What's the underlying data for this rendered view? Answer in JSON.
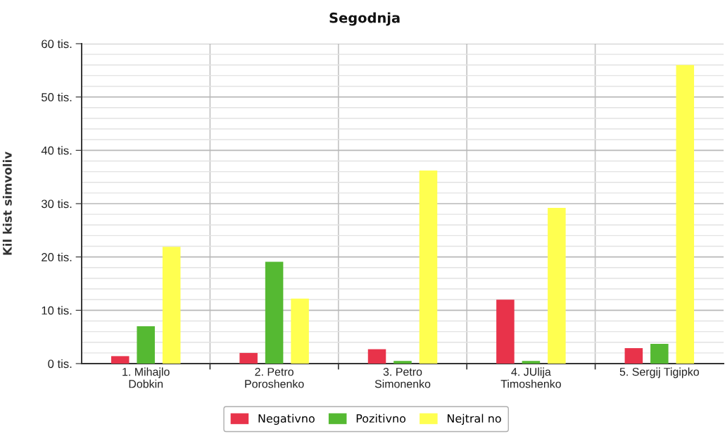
{
  "chart_data": {
    "type": "bar",
    "title": "Segodnja",
    "ylabel": "Kil kist simvoliv",
    "categories": [
      "1. Mihajlo\nDobkin",
      "2. Petro\nPoroshenko",
      "3. Petro\nSimonenko",
      "4. JUlija\nTimoshenko",
      "5. Sergij Tigipko"
    ],
    "series": [
      {
        "name": "Negativno",
        "color": "#e8334a",
        "values": [
          1.4,
          2.0,
          2.7,
          12.0,
          2.9
        ]
      },
      {
        "name": "Pozitivno",
        "color": "#55b932",
        "values": [
          7.0,
          19.1,
          0.5,
          0.5,
          3.7
        ]
      },
      {
        "name": "Nejtral no",
        "color": "#ffff50",
        "values": [
          21.9,
          12.2,
          36.2,
          29.2,
          56.0
        ]
      }
    ],
    "ylim": [
      0,
      60
    ],
    "yticks": [
      {
        "value": 0,
        "label": "0 tis."
      },
      {
        "value": 2,
        "label": null
      },
      {
        "value": 4,
        "label": null
      },
      {
        "value": 6,
        "label": null
      },
      {
        "value": 8,
        "label": null
      },
      {
        "value": 10,
        "label": "10 tis."
      },
      {
        "value": 12,
        "label": null
      },
      {
        "value": 14,
        "label": null
      },
      {
        "value": 16,
        "label": null
      },
      {
        "value": 18,
        "label": null
      },
      {
        "value": 20,
        "label": "20 tis."
      },
      {
        "value": 22,
        "label": null
      },
      {
        "value": 24,
        "label": null
      },
      {
        "value": 26,
        "label": null
      },
      {
        "value": 28,
        "label": null
      },
      {
        "value": 30,
        "label": "30 tis."
      },
      {
        "value": 32,
        "label": null
      },
      {
        "value": 34,
        "label": null
      },
      {
        "value": 36,
        "label": null
      },
      {
        "value": 38,
        "label": null
      },
      {
        "value": 40,
        "label": "40 tis."
      },
      {
        "value": 42,
        "label": null
      },
      {
        "value": 44,
        "label": null
      },
      {
        "value": 46,
        "label": null
      },
      {
        "value": 48,
        "label": null
      },
      {
        "value": 50,
        "label": "50 tis."
      },
      {
        "value": 52,
        "label": null
      },
      {
        "value": 54,
        "label": null
      },
      {
        "value": 56,
        "label": null
      },
      {
        "value": 58,
        "label": null
      },
      {
        "value": 60,
        "label": "60 tis."
      }
    ],
    "grid": true,
    "legend": "bottom"
  }
}
